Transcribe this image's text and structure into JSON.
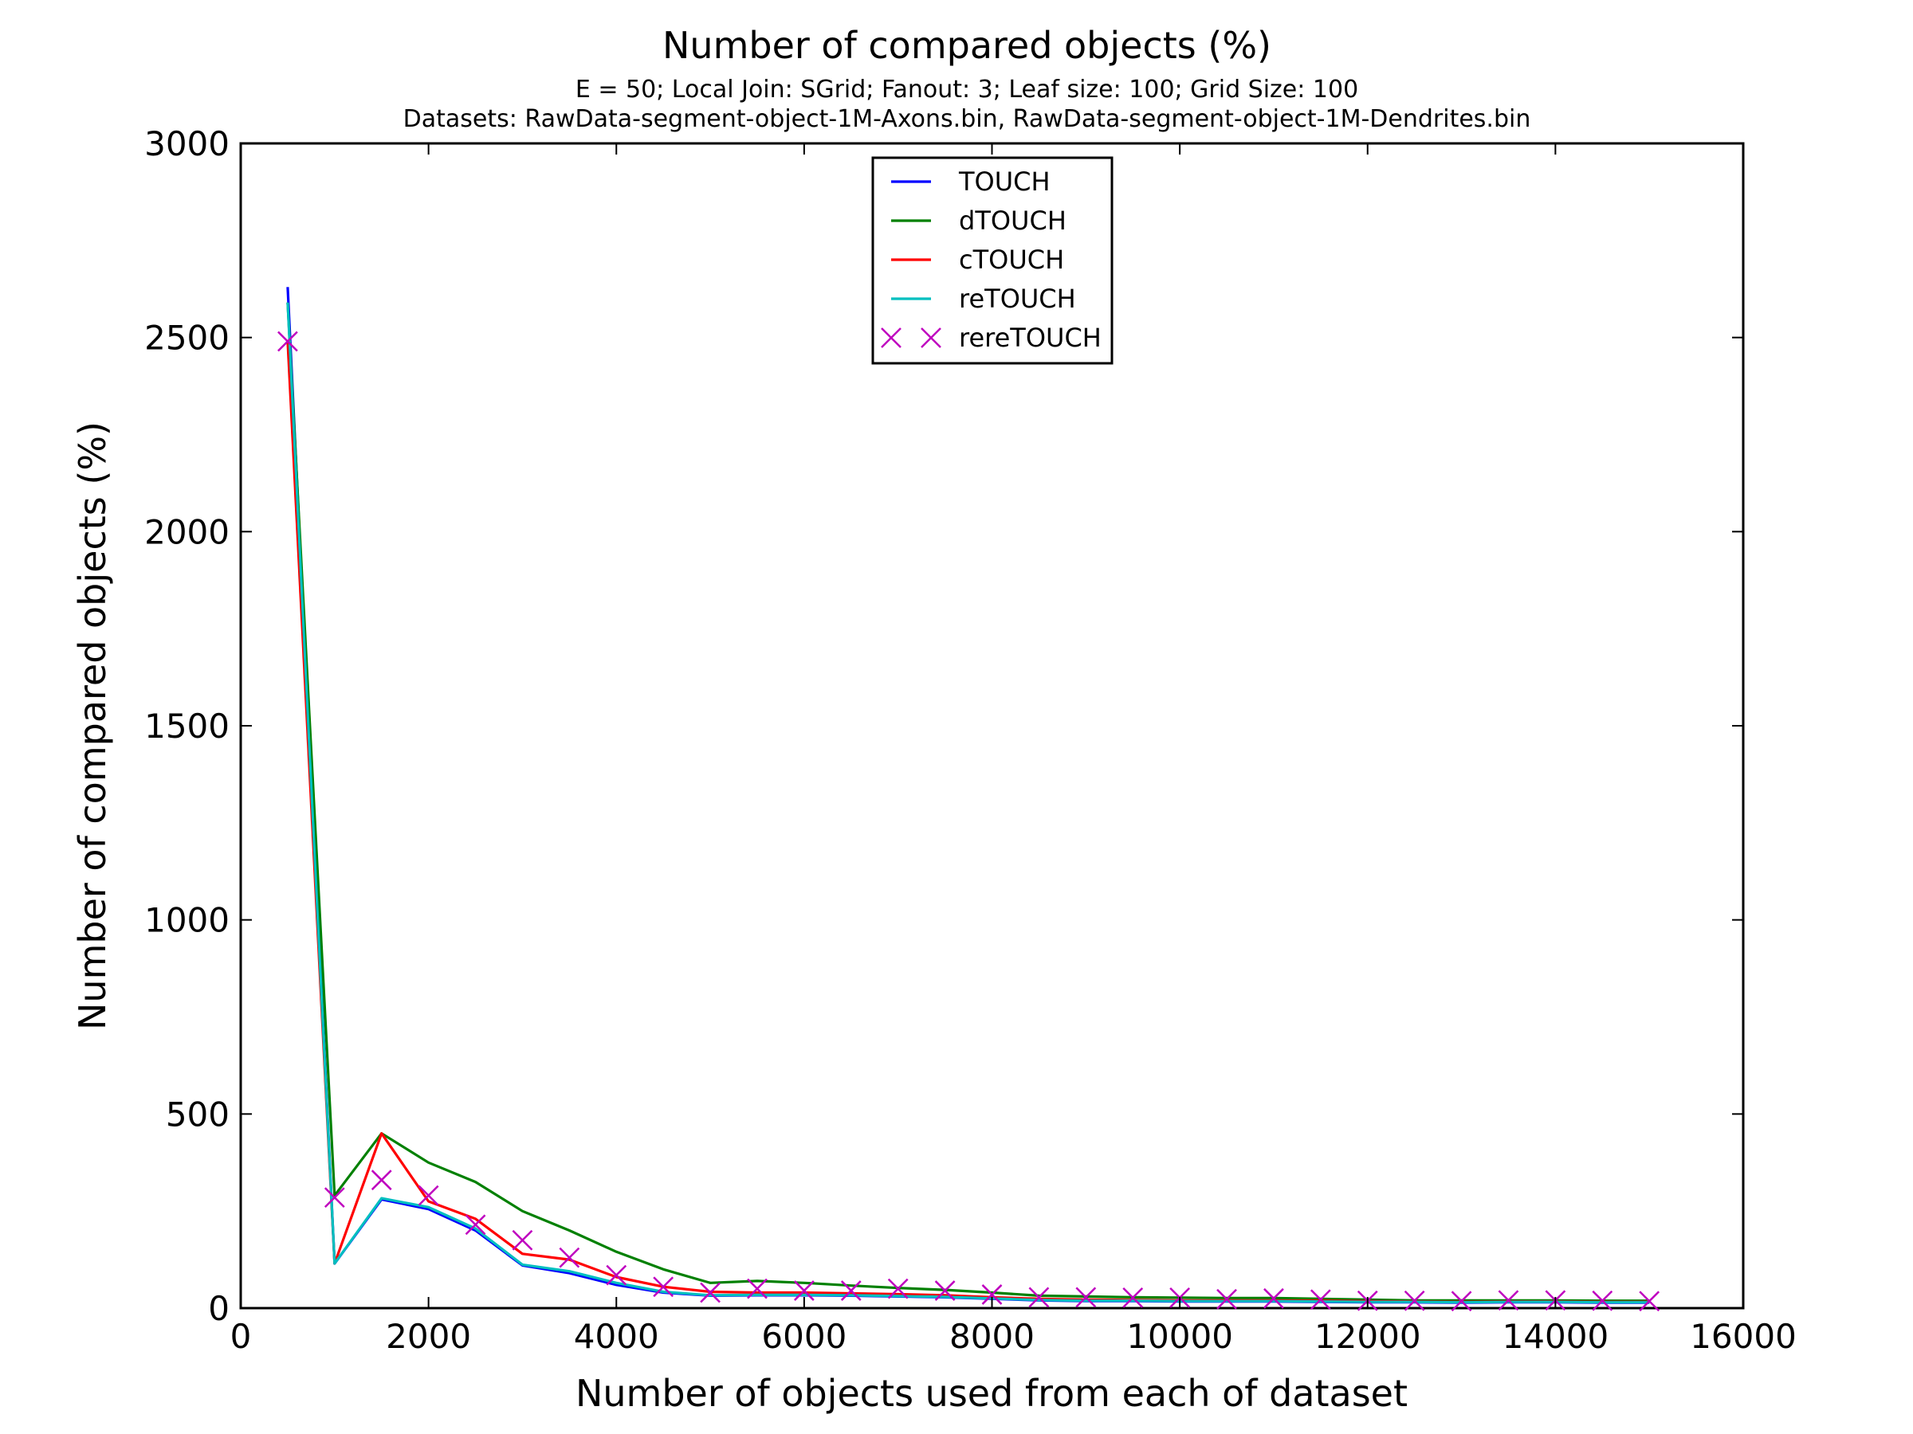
{
  "chart_data": {
    "type": "line",
    "title": "Number of compared objects (%)",
    "subtitle_lines": [
      "E = 50; Local Join: SGrid; Fanout: 3; Leaf size: 100; Grid Size: 100",
      "Datasets: RawData-segment-object-1M-Axons.bin, RawData-segment-object-1M-Dendrites.bin"
    ],
    "xlabel": "Number of objects used from each of dataset",
    "ylabel": "Number of compared objects (%)",
    "xlim": [
      0,
      16000
    ],
    "ylim": [
      0,
      3000
    ],
    "xticks": [
      0,
      2000,
      4000,
      6000,
      8000,
      10000,
      12000,
      14000,
      16000
    ],
    "yticks": [
      0,
      500,
      1000,
      1500,
      2000,
      2500,
      3000
    ],
    "grid": false,
    "legend_position": "top-center",
    "x": [
      500,
      1000,
      1500,
      2000,
      2500,
      3000,
      3500,
      4000,
      4500,
      5000,
      5500,
      6000,
      6500,
      7000,
      7500,
      8000,
      8500,
      9000,
      9500,
      10000,
      10500,
      11000,
      11500,
      12000,
      12500,
      13000,
      13500,
      14000,
      14500,
      15000
    ],
    "series": [
      {
        "name": "TOUCH",
        "color": "#0000ff",
        "style": "line",
        "values": [
          2630,
          115,
          280,
          255,
          200,
          110,
          90,
          60,
          40,
          32,
          33,
          33,
          32,
          30,
          28,
          24,
          20,
          18,
          18,
          17,
          17,
          17,
          16,
          15,
          15,
          14,
          15,
          15,
          14,
          14
        ]
      },
      {
        "name": "dTOUCH",
        "color": "#008000",
        "style": "line",
        "values": [
          2590,
          290,
          450,
          375,
          325,
          250,
          200,
          145,
          100,
          65,
          70,
          65,
          58,
          52,
          47,
          40,
          32,
          30,
          28,
          27,
          26,
          26,
          24,
          22,
          20,
          20,
          20,
          20,
          19,
          19
        ]
      },
      {
        "name": "cTOUCH",
        "color": "#ff0000",
        "style": "line",
        "values": [
          2490,
          115,
          450,
          275,
          230,
          140,
          125,
          80,
          55,
          42,
          40,
          40,
          38,
          36,
          33,
          28,
          24,
          22,
          21,
          20,
          20,
          20,
          19,
          18,
          17,
          16,
          17,
          17,
          16,
          16
        ]
      },
      {
        "name": "reTOUCH",
        "color": "#00bfbf",
        "style": "line",
        "values": [
          2590,
          115,
          283,
          260,
          205,
          112,
          95,
          65,
          42,
          33,
          34,
          34,
          33,
          31,
          29,
          25,
          21,
          19,
          19,
          18,
          18,
          18,
          17,
          16,
          16,
          15,
          16,
          16,
          15,
          15
        ]
      },
      {
        "name": "rereTOUCH",
        "color": "#bf00bf",
        "style": "marker-x",
        "values": [
          2490,
          285,
          330,
          290,
          215,
          175,
          130,
          85,
          55,
          40,
          50,
          45,
          45,
          50,
          45,
          35,
          28,
          28,
          27,
          27,
          23,
          25,
          22,
          19,
          19,
          18,
          20,
          20,
          19,
          18
        ]
      }
    ]
  }
}
